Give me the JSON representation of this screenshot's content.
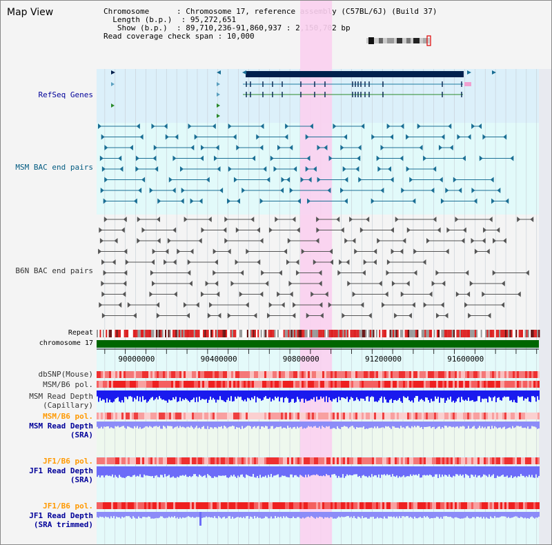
{
  "page": {
    "title": "Map View"
  },
  "info": {
    "chromosome_key": "Chromosome",
    "chromosome_value": "Chromosome 17, reference assembly (C57BL/6J) (Build 37)",
    "length_key": "Length (b.p.)",
    "length_value": "95,272,651",
    "show_key": "Show (b.p.)",
    "show_value": "89,710,236-91,860,937 : 2,150,702 bp",
    "coverage_key": "Read coverage check span",
    "coverage_value": "10,000"
  },
  "labels": {
    "refseq": "RefSeq Genes",
    "msm_bac": "MSM BAC end pairs",
    "b6n_bac": "B6N BAC end pairs",
    "repeat": "Repeat",
    "chromosome": "chromosome 17",
    "dbsnp": "dbSNP(Mouse)",
    "msm_b6_pol_1": "MSM/B6 pol.",
    "msm_depth_cap": "MSM Read Depth\n(Capillary)",
    "msm_b6_pol_2": "MSM/B6 pol.",
    "msm_depth_sra": "MSM Read Depth\n(SRA)",
    "jf1_b6_pol_1": "JF1/B6 pol.",
    "jf1_depth_sra": "JF1 Read Depth\n(SRA)",
    "jf1_b6_pol_2": "JF1/B6 pol.",
    "jf1_depth_trim": "JF1 Read Depth\n(SRA trimmed)"
  },
  "axis": {
    "start": 89710236,
    "end": 91860937,
    "ticks": [
      90000000,
      90400000,
      90800000,
      91200000,
      91600000
    ]
  },
  "highlight": {
    "start": 90700000,
    "end": 90855000
  },
  "colors": {
    "label_blue": "#000099",
    "label_teal": "#005a80",
    "label_gray": "#333333",
    "label_orange": "#ff9900",
    "refseq_bg": "#dcf0fa",
    "msm_bg": "#e2fafa",
    "b6n_bg": "#f4f4f4",
    "lower_bg": "#e4fafa",
    "lower_bg_alt": "#eef8ee",
    "highlight": "#fbd0f0",
    "chrom_band": "#006600",
    "gene_dark": "#00204d",
    "gene_teal": "#1a7aa0",
    "gene_green": "#2a8a2a",
    "bac_teal": "#1a6e94",
    "bac_gray": "#555555",
    "depth_cap": "#1a1aee",
    "depth_sra": "#8c8cf8",
    "pol_red": "#ee2222"
  },
  "icons": {
    "ideogram": "chromosome-ideogram-icon"
  }
}
